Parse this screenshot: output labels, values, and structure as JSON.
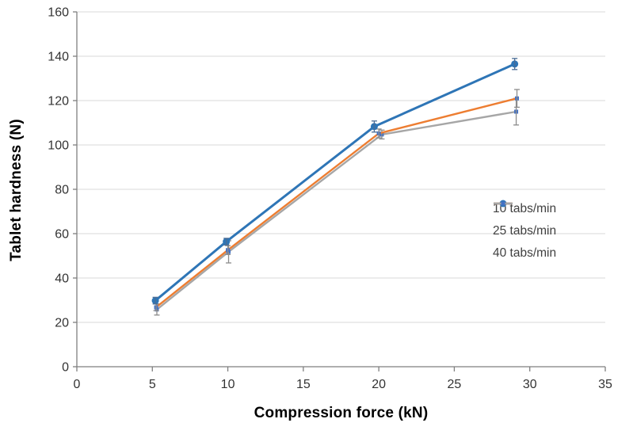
{
  "chart_data": {
    "type": "line",
    "title": "",
    "xlabel": "Compression force (kN)",
    "ylabel": "Tablet hardness (N)",
    "xlim": [
      0,
      35
    ],
    "ylim": [
      0,
      160
    ],
    "xtick_step": 5,
    "ytick_step": 20,
    "xticks": [
      0,
      5,
      10,
      15,
      20,
      25,
      30,
      35
    ],
    "yticks": [
      0,
      20,
      40,
      60,
      80,
      100,
      120,
      140,
      160
    ],
    "grid": "horizontal-only",
    "legend_position": "inside-right",
    "series": [
      {
        "name": "10 tabs/min",
        "color": "#2E75B6",
        "marker": "circle",
        "marker_color": "#2E75B6",
        "marker_size": 9,
        "line_width": 3,
        "error_color": "#4a6d96",
        "x": [
          5.2,
          9.9,
          19.7,
          29.0
        ],
        "y": [
          29.8,
          56.4,
          108.3,
          136.5
        ],
        "yerr": [
          1.5,
          1.5,
          2.5,
          2.5
        ]
      },
      {
        "name": "25 tabs/min",
        "color": "#ED7D31",
        "marker": "square",
        "marker_color": "#4472C4",
        "marker_size": 5,
        "line_width": 2.4,
        "error_color": "#8c8c8c",
        "x": [
          5.25,
          10.0,
          20.0,
          29.15
        ],
        "y": [
          26.8,
          52.6,
          105.2,
          121.0
        ],
        "yerr": [
          1.5,
          2.0,
          2.0,
          4.0
        ]
      },
      {
        "name": "40 tabs/min",
        "color": "#A6A6A6",
        "marker": "square",
        "marker_color": "#4472C4",
        "marker_size": 5,
        "line_width": 2.4,
        "error_color": "#8c8c8c",
        "x": [
          5.3,
          10.05,
          20.2,
          29.1
        ],
        "y": [
          25.8,
          51.8,
          104.7,
          115.0
        ],
        "yerr": [
          2.5,
          5.0,
          2.0,
          6.0
        ]
      }
    ],
    "colors": {
      "grid": "#D9D9D9",
      "axis": "#7F7F7F",
      "tick_label": "#333333",
      "legend_text": "#3f3f3f",
      "background": "#ffffff"
    }
  }
}
